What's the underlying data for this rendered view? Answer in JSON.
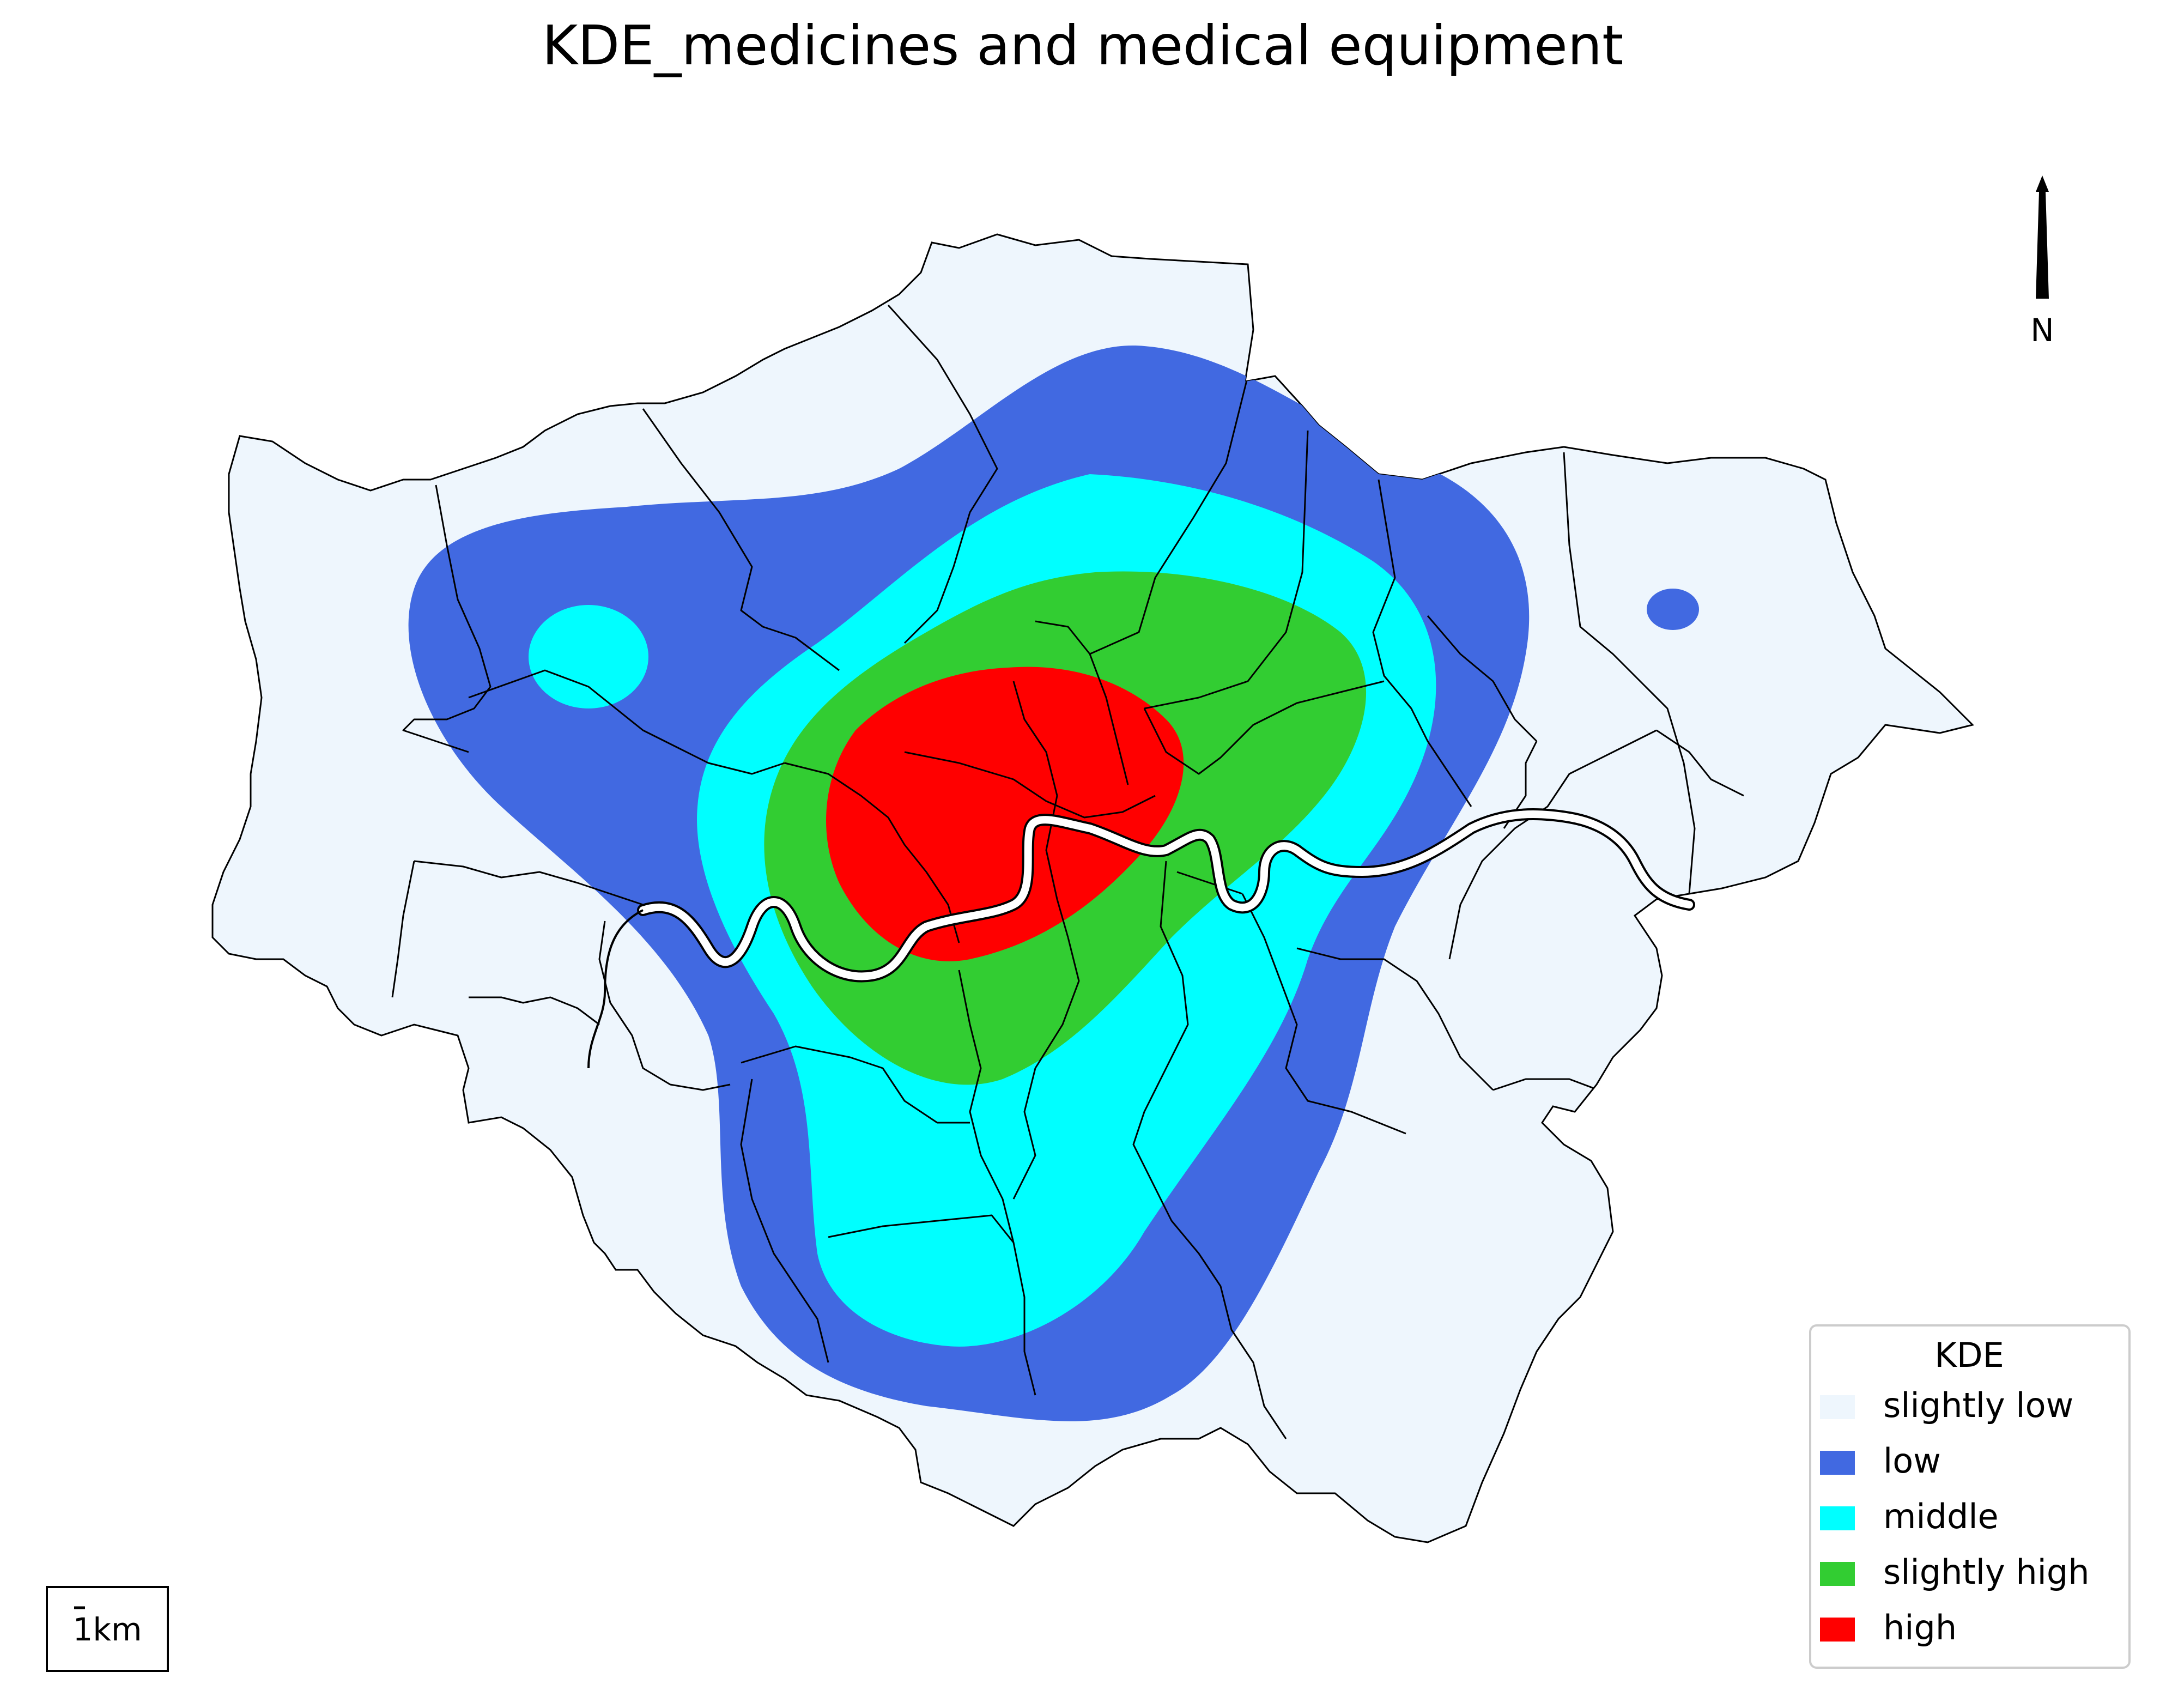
{
  "title": "KDE_medicines and medical equipment",
  "north_arrow": {
    "label": "N"
  },
  "scale_bar": {
    "label": "1km"
  },
  "legend": {
    "title": "KDE",
    "items": [
      {
        "label": "slightly low",
        "color": "#eef6fd"
      },
      {
        "label": "low",
        "color": "#4169e1"
      },
      {
        "label": "middle",
        "color": "#00ffff"
      },
      {
        "label": "slightly high",
        "color": "#32cd32"
      },
      {
        "label": "high",
        "color": "#ff0000"
      }
    ]
  },
  "map": {
    "base_color": "#eef6fd",
    "river_color": "#ffffff",
    "border_color": "#000000"
  }
}
